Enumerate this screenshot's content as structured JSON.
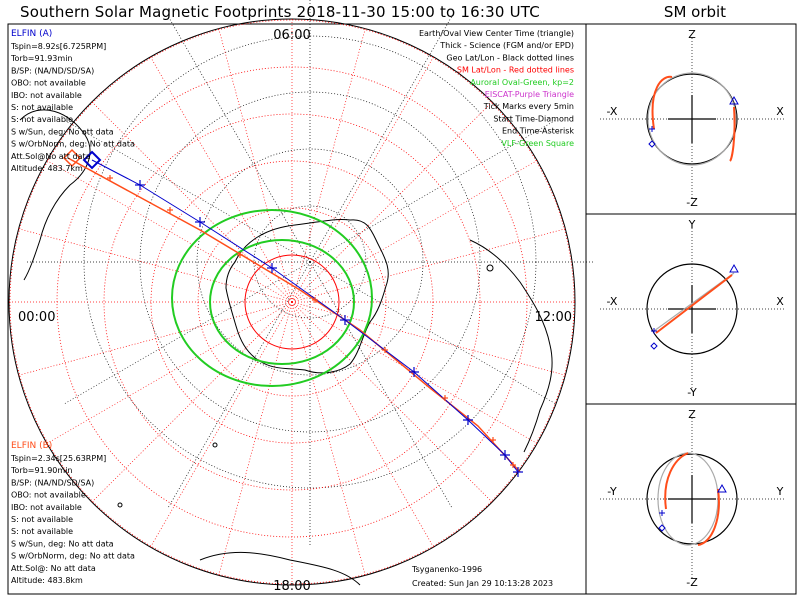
{
  "title": "Southern Solar Magnetic Footprints 2018-11-30 15:00 to 16:30 UTC",
  "orbit_title": "SM orbit",
  "clock_labels": {
    "top": "06:00",
    "left": "00:00",
    "right": "12:00",
    "bottom": "18:00"
  },
  "elfin_a": {
    "name": "ELFIN (A)",
    "lines": [
      "Tspin=8.92s[6.725RPM]",
      "Torb=91.93min",
      "B/SP: (NA/ND/SD/SA)",
      "OBO: not available",
      "IBO: not available",
      "S: not available",
      "S: not available",
      "S w/Sun, deg: No att data",
      "S w/OrbNorm, deg: No att data",
      "Att.Sol@No att data",
      "Altitude: 483.7km"
    ]
  },
  "elfin_b": {
    "name": "ELFIN (B)",
    "lines": [
      "Tspin=2.34s[25.63RPM]",
      "Torb=91.90min",
      "B/SP: (NA/ND/SD/SA)",
      "OBO: not available",
      "IBO: not available",
      "S: not available",
      "S: not available",
      "S w/Sun, deg: No att data",
      "S w/OrbNorm, deg: No att data",
      "Att.Sol@: No att data",
      "Altitude: 483.8km"
    ]
  },
  "legend": [
    {
      "text": "Earth/Oval View Center Time (triangle)",
      "color": "#000000"
    },
    {
      "text": "Thick - Science (FGM and/or EPD)",
      "color": "#000000"
    },
    {
      "text": "Geo Lat/Lon - Black dotted lines",
      "color": "#000000"
    },
    {
      "text": "SM Lat/Lon - Red dotted lines",
      "color": "#ff0000"
    },
    {
      "text": "Auroral Oval-Green, kp=2",
      "color": "#22cc22"
    },
    {
      "text": "EISCAT-Purple Triangle",
      "color": "#cc33cc"
    },
    {
      "text": "Tick Marks every 5min",
      "color": "#000000"
    },
    {
      "text": "Start Time-Diamond",
      "color": "#000000"
    },
    {
      "text": "End Time-Asterisk",
      "color": "#000000"
    },
    {
      "text": "VLF-Green Square",
      "color": "#22cc22"
    }
  ],
  "credit": {
    "author": "Tsyganenko-1996",
    "created": "Created: Sun Jan 29 10:13:28 2023"
  },
  "orbit_panels": [
    {
      "top": "Z",
      "bottom": "-Z",
      "left": "-X",
      "right": "X"
    },
    {
      "top": "Y",
      "bottom": "-Y",
      "left": "-X",
      "right": "X"
    },
    {
      "top": "Z",
      "bottom": "-Z",
      "left": "-Y",
      "right": "Y"
    }
  ],
  "colors": {
    "elfin_a": "#0000cc",
    "elfin_b": "#ff4d1a",
    "oval": "#22cc22",
    "sm_grid": "#ff0000",
    "geo_grid": "#000000"
  },
  "chart_data": {
    "type": "polar-map",
    "hemisphere": "south",
    "footprint_a_ticks_5min": 11,
    "footprint_b_ticks_5min": 11,
    "auroral_oval_kp": 2
  }
}
